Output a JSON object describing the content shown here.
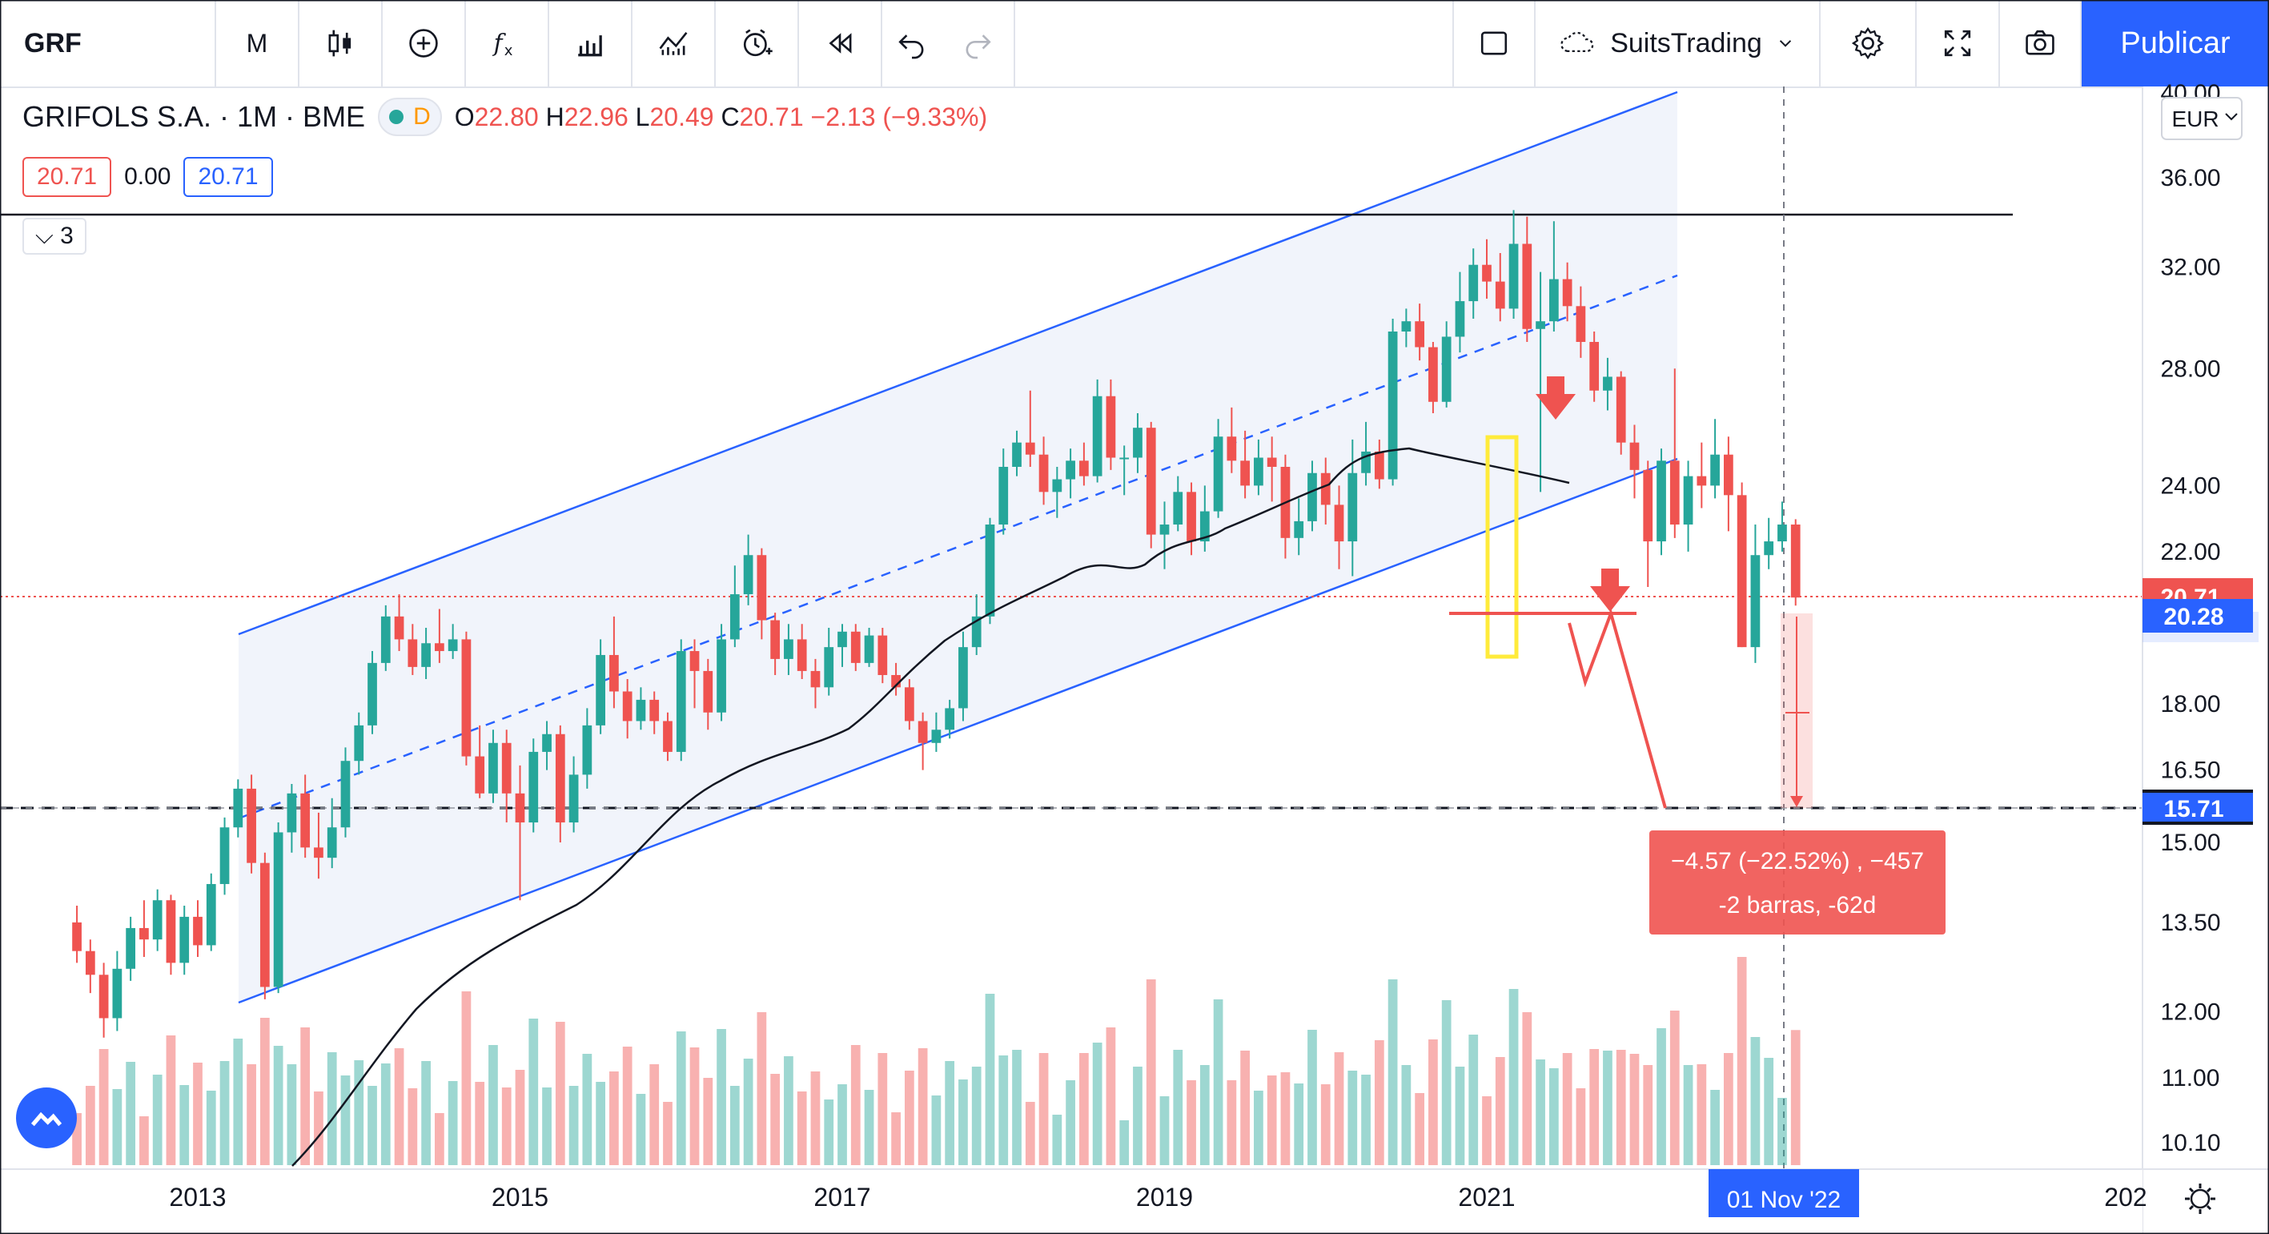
{
  "toolbar": {
    "symbol": "GRF",
    "interval": "M",
    "layout_name": "SuitsTrading",
    "publish_label": "Publicar"
  },
  "legend": {
    "title": "GRIFOLS S.A. · 1M · BME",
    "delayed_badge": "D",
    "open_label": "O",
    "open": "22.80",
    "high_label": "H",
    "high": "22.96",
    "low_label": "L",
    "low": "20.49",
    "close_label": "C",
    "close": "20.71",
    "change": "−2.13 (−9.33%)",
    "sell_price": "20.71",
    "spread": "0.00",
    "buy_price": "20.71",
    "indicators_count": "3"
  },
  "axis": {
    "currency": "EUR",
    "current_price_label": "20.71",
    "target_price_label": "20.28",
    "stop_price_label": "15.71",
    "crosshair_date": "01 Nov '22"
  },
  "measure": {
    "line1": "−4.57 (−22.52%) , −457",
    "line2": "-2 barras, -62d"
  },
  "colors": {
    "up": "#26a69a",
    "down": "#ef5350",
    "channel": "#2962ff",
    "brand": "#2962ff"
  },
  "chart_data": {
    "type": "candlestick",
    "interval": "1M",
    "ylim": [
      10.1,
      40.0
    ],
    "y_scale": "log",
    "y_ticks": [
      "40.00",
      "36.00",
      "32.00",
      "28.00",
      "24.00",
      "22.00",
      "20.00",
      "18.00",
      "16.50",
      "15.00",
      "13.50",
      "12.00",
      "11.00",
      "10.10"
    ],
    "x_ticks": [
      "2013",
      "2015",
      "2017",
      "2019",
      "2021",
      "202"
    ],
    "x_range": [
      "2011-11",
      "2022-12"
    ],
    "candles": [
      {
        "t": "2012-04",
        "o": 13.5,
        "c": 13.0,
        "h": 13.8,
        "l": 12.8
      },
      {
        "t": "2012-05",
        "o": 13.0,
        "c": 12.6,
        "h": 13.2,
        "l": 12.3
      },
      {
        "t": "2012-06",
        "o": 12.6,
        "c": 11.9,
        "h": 12.8,
        "l": 11.6
      },
      {
        "t": "2012-07",
        "o": 11.9,
        "c": 12.7,
        "h": 13.0,
        "l": 11.7
      },
      {
        "t": "2012-08",
        "o": 12.7,
        "c": 13.4,
        "h": 13.6,
        "l": 12.5
      },
      {
        "t": "2012-09",
        "o": 13.4,
        "c": 13.2,
        "h": 13.9,
        "l": 12.9
      },
      {
        "t": "2012-10",
        "o": 13.2,
        "c": 13.9,
        "h": 14.1,
        "l": 13.0
      },
      {
        "t": "2012-11",
        "o": 13.9,
        "c": 12.8,
        "h": 14.0,
        "l": 12.6
      },
      {
        "t": "2012-12",
        "o": 12.8,
        "c": 13.6,
        "h": 13.8,
        "l": 12.6
      },
      {
        "t": "2013-01",
        "o": 13.6,
        "c": 13.1,
        "h": 13.9,
        "l": 12.9
      },
      {
        "t": "2013-02",
        "o": 13.1,
        "c": 14.2,
        "h": 14.4,
        "l": 13.0
      },
      {
        "t": "2013-03",
        "o": 14.2,
        "c": 15.3,
        "h": 15.5,
        "l": 14.0
      },
      {
        "t": "2013-04",
        "o": 15.3,
        "c": 16.1,
        "h": 16.3,
        "l": 15.1
      },
      {
        "t": "2013-05",
        "o": 16.1,
        "c": 14.6,
        "h": 16.4,
        "l": 14.4
      },
      {
        "t": "2013-06",
        "o": 14.6,
        "c": 12.4,
        "h": 14.8,
        "l": 12.2
      },
      {
        "t": "2013-07",
        "o": 12.4,
        "c": 15.2,
        "h": 15.4,
        "l": 12.3
      },
      {
        "t": "2013-08",
        "o": 15.2,
        "c": 16.0,
        "h": 16.2,
        "l": 14.8
      },
      {
        "t": "2013-09",
        "o": 16.0,
        "c": 14.9,
        "h": 16.4,
        "l": 14.7
      },
      {
        "t": "2013-10",
        "o": 14.9,
        "c": 14.7,
        "h": 15.6,
        "l": 14.3
      },
      {
        "t": "2013-11",
        "o": 14.7,
        "c": 15.3,
        "h": 15.9,
        "l": 14.5
      },
      {
        "t": "2013-12",
        "o": 15.3,
        "c": 16.7,
        "h": 17.0,
        "l": 15.1
      },
      {
        "t": "2014-01",
        "o": 16.7,
        "c": 17.5,
        "h": 17.8,
        "l": 16.4
      },
      {
        "t": "2014-02",
        "o": 17.5,
        "c": 19.0,
        "h": 19.3,
        "l": 17.3
      },
      {
        "t": "2014-03",
        "o": 19.0,
        "c": 20.2,
        "h": 20.5,
        "l": 18.8
      },
      {
        "t": "2014-04",
        "o": 20.2,
        "c": 19.6,
        "h": 20.8,
        "l": 19.3
      },
      {
        "t": "2014-05",
        "o": 19.6,
        "c": 18.9,
        "h": 20.0,
        "l": 18.7
      },
      {
        "t": "2014-06",
        "o": 18.9,
        "c": 19.5,
        "h": 19.9,
        "l": 18.6
      },
      {
        "t": "2014-07",
        "o": 19.5,
        "c": 19.3,
        "h": 20.4,
        "l": 19.0
      },
      {
        "t": "2014-08",
        "o": 19.3,
        "c": 19.6,
        "h": 20.0,
        "l": 19.1
      },
      {
        "t": "2014-09",
        "o": 19.6,
        "c": 16.8,
        "h": 19.8,
        "l": 16.6
      },
      {
        "t": "2014-10",
        "o": 16.8,
        "c": 16.0,
        "h": 17.5,
        "l": 15.9
      },
      {
        "t": "2014-11",
        "o": 16.0,
        "c": 17.1,
        "h": 17.4,
        "l": 15.8
      },
      {
        "t": "2014-12",
        "o": 17.1,
        "c": 16.0,
        "h": 17.4,
        "l": 15.4
      },
      {
        "t": "2015-01",
        "o": 16.0,
        "c": 15.4,
        "h": 16.6,
        "l": 13.9
      },
      {
        "t": "2015-02",
        "o": 15.4,
        "c": 16.9,
        "h": 17.2,
        "l": 15.2
      },
      {
        "t": "2015-03",
        "o": 16.9,
        "c": 17.3,
        "h": 17.6,
        "l": 16.5
      },
      {
        "t": "2015-04",
        "o": 17.3,
        "c": 15.4,
        "h": 17.5,
        "l": 15.0
      },
      {
        "t": "2015-05",
        "o": 15.4,
        "c": 16.4,
        "h": 16.8,
        "l": 15.2
      },
      {
        "t": "2015-06",
        "o": 16.4,
        "c": 17.5,
        "h": 17.9,
        "l": 16.1
      },
      {
        "t": "2015-07",
        "o": 17.5,
        "c": 19.2,
        "h": 19.6,
        "l": 17.3
      },
      {
        "t": "2015-08",
        "o": 19.2,
        "c": 18.3,
        "h": 20.2,
        "l": 17.9
      },
      {
        "t": "2015-09",
        "o": 18.3,
        "c": 17.6,
        "h": 18.6,
        "l": 17.2
      },
      {
        "t": "2015-10",
        "o": 17.6,
        "c": 18.1,
        "h": 18.4,
        "l": 17.4
      },
      {
        "t": "2015-11",
        "o": 18.1,
        "c": 17.6,
        "h": 18.3,
        "l": 17.3
      },
      {
        "t": "2015-12",
        "o": 17.6,
        "c": 16.9,
        "h": 17.8,
        "l": 16.7
      },
      {
        "t": "2016-01",
        "o": 16.9,
        "c": 19.3,
        "h": 19.6,
        "l": 16.7
      },
      {
        "t": "2016-02",
        "o": 19.3,
        "c": 18.8,
        "h": 19.6,
        "l": 17.9
      },
      {
        "t": "2016-03",
        "o": 18.8,
        "c": 17.8,
        "h": 19.1,
        "l": 17.4
      },
      {
        "t": "2016-04",
        "o": 17.8,
        "c": 19.6,
        "h": 20.0,
        "l": 17.6
      },
      {
        "t": "2016-05",
        "o": 19.6,
        "c": 20.8,
        "h": 21.6,
        "l": 19.4
      },
      {
        "t": "2016-06",
        "o": 20.8,
        "c": 21.9,
        "h": 22.5,
        "l": 20.5
      },
      {
        "t": "2016-07",
        "o": 21.9,
        "c": 20.1,
        "h": 22.1,
        "l": 19.6
      },
      {
        "t": "2016-08",
        "o": 20.1,
        "c": 19.1,
        "h": 20.3,
        "l": 18.7
      },
      {
        "t": "2016-09",
        "o": 19.1,
        "c": 19.6,
        "h": 20.0,
        "l": 18.7
      },
      {
        "t": "2016-10",
        "o": 19.6,
        "c": 18.8,
        "h": 20.0,
        "l": 18.6
      },
      {
        "t": "2016-11",
        "o": 18.8,
        "c": 18.4,
        "h": 19.1,
        "l": 17.9
      },
      {
        "t": "2016-12",
        "o": 18.4,
        "c": 19.4,
        "h": 19.9,
        "l": 18.2
      },
      {
        "t": "2017-01",
        "o": 19.4,
        "c": 19.8,
        "h": 20.0,
        "l": 18.9
      },
      {
        "t": "2017-02",
        "o": 19.8,
        "c": 19.0,
        "h": 20.0,
        "l": 18.8
      },
      {
        "t": "2017-03",
        "o": 19.0,
        "c": 19.7,
        "h": 19.9,
        "l": 18.9
      },
      {
        "t": "2017-04",
        "o": 19.7,
        "c": 18.7,
        "h": 19.9,
        "l": 18.5
      },
      {
        "t": "2017-05",
        "o": 18.7,
        "c": 18.4,
        "h": 19.0,
        "l": 18.2
      },
      {
        "t": "2017-06",
        "o": 18.4,
        "c": 17.6,
        "h": 18.6,
        "l": 17.4
      },
      {
        "t": "2017-07",
        "o": 17.6,
        "c": 17.1,
        "h": 17.8,
        "l": 16.5
      },
      {
        "t": "2017-08",
        "o": 17.1,
        "c": 17.4,
        "h": 17.8,
        "l": 16.9
      },
      {
        "t": "2017-09",
        "o": 17.4,
        "c": 17.9,
        "h": 18.1,
        "l": 17.2
      },
      {
        "t": "2017-10",
        "o": 17.9,
        "c": 19.4,
        "h": 19.8,
        "l": 17.6
      },
      {
        "t": "2017-11",
        "o": 19.4,
        "c": 20.2,
        "h": 20.8,
        "l": 19.2
      },
      {
        "t": "2017-12",
        "o": 20.2,
        "c": 22.8,
        "h": 23.0,
        "l": 20.0
      },
      {
        "t": "2018-01",
        "o": 22.8,
        "c": 24.6,
        "h": 25.2,
        "l": 22.5
      },
      {
        "t": "2018-02",
        "o": 24.6,
        "c": 25.4,
        "h": 25.8,
        "l": 24.3
      },
      {
        "t": "2018-03",
        "o": 25.4,
        "c": 25.0,
        "h": 27.2,
        "l": 24.6
      },
      {
        "t": "2018-04",
        "o": 25.0,
        "c": 23.8,
        "h": 25.6,
        "l": 23.4
      },
      {
        "t": "2018-05",
        "o": 23.8,
        "c": 24.2,
        "h": 24.6,
        "l": 23.0
      },
      {
        "t": "2018-06",
        "o": 24.2,
        "c": 24.8,
        "h": 25.2,
        "l": 23.6
      },
      {
        "t": "2018-07",
        "o": 24.8,
        "c": 24.3,
        "h": 25.4,
        "l": 24.0
      },
      {
        "t": "2018-08",
        "o": 24.3,
        "c": 27.0,
        "h": 27.6,
        "l": 24.1
      },
      {
        "t": "2018-09",
        "o": 27.0,
        "c": 24.9,
        "h": 27.6,
        "l": 24.5
      },
      {
        "t": "2018-10",
        "o": 24.9,
        "c": 24.9,
        "h": 25.3,
        "l": 23.7
      },
      {
        "t": "2018-11",
        "o": 24.9,
        "c": 25.9,
        "h": 26.4,
        "l": 24.4
      },
      {
        "t": "2018-12",
        "o": 25.9,
        "c": 22.5,
        "h": 26.1,
        "l": 22.1
      },
      {
        "t": "2019-01",
        "o": 22.5,
        "c": 22.8,
        "h": 23.5,
        "l": 21.5
      },
      {
        "t": "2019-02",
        "o": 22.8,
        "c": 23.8,
        "h": 24.3,
        "l": 22.6
      },
      {
        "t": "2019-03",
        "o": 23.8,
        "c": 22.3,
        "h": 24.1,
        "l": 21.9
      },
      {
        "t": "2019-04",
        "o": 22.3,
        "c": 23.2,
        "h": 24.0,
        "l": 22.0
      },
      {
        "t": "2019-05",
        "o": 23.2,
        "c": 25.6,
        "h": 26.2,
        "l": 23.0
      },
      {
        "t": "2019-06",
        "o": 25.6,
        "c": 24.8,
        "h": 26.6,
        "l": 24.4
      },
      {
        "t": "2019-07",
        "o": 24.8,
        "c": 24.0,
        "h": 25.8,
        "l": 23.6
      },
      {
        "t": "2019-08",
        "o": 24.0,
        "c": 24.9,
        "h": 25.5,
        "l": 23.7
      },
      {
        "t": "2019-09",
        "o": 24.9,
        "c": 24.6,
        "h": 25.6,
        "l": 23.5
      },
      {
        "t": "2019-10",
        "o": 24.6,
        "c": 22.4,
        "h": 25.0,
        "l": 21.8
      },
      {
        "t": "2019-11",
        "o": 22.4,
        "c": 22.9,
        "h": 23.6,
        "l": 21.9
      },
      {
        "t": "2019-12",
        "o": 22.9,
        "c": 24.4,
        "h": 24.8,
        "l": 22.6
      },
      {
        "t": "2020-01",
        "o": 24.4,
        "c": 23.4,
        "h": 24.9,
        "l": 22.8
      },
      {
        "t": "2020-02",
        "o": 23.4,
        "c": 22.3,
        "h": 24.0,
        "l": 21.5
      },
      {
        "t": "2020-03",
        "o": 22.3,
        "c": 24.4,
        "h": 25.5,
        "l": 21.3
      },
      {
        "t": "2020-04",
        "o": 24.4,
        "c": 25.1,
        "h": 26.1,
        "l": 24.0
      },
      {
        "t": "2020-05",
        "o": 25.1,
        "c": 24.2,
        "h": 25.5,
        "l": 23.9
      },
      {
        "t": "2020-06",
        "o": 24.2,
        "c": 29.4,
        "h": 29.9,
        "l": 24.0
      },
      {
        "t": "2020-07",
        "o": 29.4,
        "c": 29.8,
        "h": 30.3,
        "l": 28.8
      },
      {
        "t": "2020-08",
        "o": 29.8,
        "c": 28.8,
        "h": 30.5,
        "l": 28.3
      },
      {
        "t": "2020-09",
        "o": 28.8,
        "c": 26.8,
        "h": 29.0,
        "l": 26.4
      },
      {
        "t": "2020-10",
        "o": 26.8,
        "c": 29.2,
        "h": 29.8,
        "l": 26.6
      },
      {
        "t": "2020-11",
        "o": 29.2,
        "c": 30.6,
        "h": 31.8,
        "l": 28.6
      },
      {
        "t": "2020-12",
        "o": 30.6,
        "c": 32.1,
        "h": 32.8,
        "l": 29.9
      },
      {
        "t": "2021-01",
        "o": 32.1,
        "c": 31.4,
        "h": 33.2,
        "l": 30.7
      },
      {
        "t": "2021-02",
        "o": 31.4,
        "c": 30.3,
        "h": 32.6,
        "l": 29.8
      },
      {
        "t": "2021-03",
        "o": 30.3,
        "c": 33.0,
        "h": 34.5,
        "l": 29.9
      },
      {
        "t": "2021-04",
        "o": 33.0,
        "c": 29.5,
        "h": 34.2,
        "l": 29.0
      },
      {
        "t": "2021-05",
        "o": 29.5,
        "c": 29.8,
        "h": 31.8,
        "l": 23.8
      },
      {
        "t": "2021-06",
        "o": 29.8,
        "c": 31.5,
        "h": 34.0,
        "l": 29.4
      },
      {
        "t": "2021-07",
        "o": 31.5,
        "c": 30.4,
        "h": 32.2,
        "l": 29.8
      },
      {
        "t": "2021-08",
        "o": 30.4,
        "c": 29.0,
        "h": 31.2,
        "l": 28.4
      },
      {
        "t": "2021-09",
        "o": 29.0,
        "c": 27.2,
        "h": 29.4,
        "l": 26.8
      },
      {
        "t": "2021-10",
        "o": 27.2,
        "c": 27.7,
        "h": 28.4,
        "l": 26.5
      },
      {
        "t": "2021-11",
        "o": 27.7,
        "c": 25.4,
        "h": 27.9,
        "l": 25.0
      },
      {
        "t": "2021-12",
        "o": 25.4,
        "c": 24.5,
        "h": 26.0,
        "l": 23.6
      },
      {
        "t": "2022-01",
        "o": 24.5,
        "c": 22.3,
        "h": 24.8,
        "l": 21.0
      },
      {
        "t": "2022-02",
        "o": 22.3,
        "c": 24.8,
        "h": 25.2,
        "l": 21.9
      },
      {
        "t": "2022-03",
        "o": 24.8,
        "c": 22.8,
        "h": 28.0,
        "l": 22.4
      },
      {
        "t": "2022-04",
        "o": 22.8,
        "c": 24.3,
        "h": 24.8,
        "l": 22.0
      },
      {
        "t": "2022-05",
        "o": 24.3,
        "c": 24.0,
        "h": 25.4,
        "l": 23.3
      },
      {
        "t": "2022-06",
        "o": 24.0,
        "c": 25.0,
        "h": 26.2,
        "l": 23.6
      },
      {
        "t": "2022-07",
        "o": 25.0,
        "c": 23.7,
        "h": 25.6,
        "l": 22.6
      },
      {
        "t": "2022-08",
        "o": 23.7,
        "c": 19.4,
        "h": 24.1,
        "l": 19.4
      },
      {
        "t": "2022-09",
        "o": 19.4,
        "c": 21.9,
        "h": 22.8,
        "l": 19.0
      },
      {
        "t": "2022-10",
        "o": 21.9,
        "c": 22.3,
        "h": 23.0,
        "l": 21.5
      },
      {
        "t": "2022-11",
        "o": 22.3,
        "c": 22.8,
        "h": 23.5,
        "l": 22.0
      },
      {
        "t": "2022-12",
        "o": 22.8,
        "c": 20.71,
        "h": 22.96,
        "l": 20.49
      }
    ]
  }
}
